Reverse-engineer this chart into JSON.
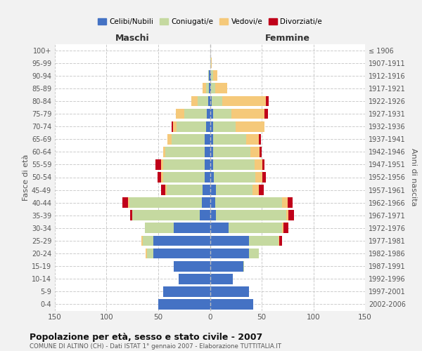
{
  "age_groups": [
    "0-4",
    "5-9",
    "10-14",
    "15-19",
    "20-24",
    "25-29",
    "30-34",
    "35-39",
    "40-44",
    "45-49",
    "50-54",
    "55-59",
    "60-64",
    "65-69",
    "70-74",
    "75-79",
    "80-84",
    "85-89",
    "90-94",
    "95-99",
    "100+"
  ],
  "birth_years": [
    "2002-2006",
    "1997-2001",
    "1992-1996",
    "1987-1991",
    "1982-1986",
    "1977-1981",
    "1972-1976",
    "1967-1971",
    "1962-1966",
    "1957-1961",
    "1952-1956",
    "1947-1951",
    "1942-1946",
    "1937-1941",
    "1932-1936",
    "1927-1931",
    "1922-1926",
    "1917-1921",
    "1912-1916",
    "1907-1911",
    "≤ 1906"
  ],
  "colors": {
    "celibe": "#4472c4",
    "coniugato": "#c5d9a0",
    "vedovo": "#f5c97a",
    "divorziato": "#c0001a"
  },
  "maschi": {
    "celibe": [
      50,
      45,
      30,
      35,
      55,
      55,
      35,
      10,
      8,
      7,
      5,
      5,
      5,
      5,
      4,
      3,
      2,
      1,
      1,
      0,
      0
    ],
    "coniugato": [
      0,
      0,
      0,
      0,
      6,
      10,
      28,
      65,
      70,
      35,
      40,
      40,
      38,
      32,
      28,
      22,
      10,
      3,
      1,
      0,
      0
    ],
    "vedovo": [
      0,
      0,
      0,
      0,
      1,
      1,
      0,
      0,
      1,
      1,
      2,
      2,
      2,
      4,
      4,
      8,
      6,
      3,
      0,
      0,
      0
    ],
    "divorziato": [
      0,
      0,
      0,
      0,
      0,
      0,
      0,
      2,
      6,
      4,
      4,
      6,
      0,
      0,
      1,
      0,
      0,
      0,
      0,
      0,
      0
    ]
  },
  "femmine": {
    "nubile": [
      42,
      38,
      22,
      32,
      38,
      38,
      18,
      6,
      5,
      6,
      4,
      3,
      3,
      3,
      3,
      3,
      2,
      1,
      1,
      0,
      0
    ],
    "coniugata": [
      0,
      0,
      0,
      1,
      9,
      28,
      52,
      68,
      65,
      35,
      40,
      40,
      36,
      32,
      22,
      18,
      10,
      4,
      2,
      1,
      0
    ],
    "vedova": [
      0,
      0,
      0,
      0,
      0,
      1,
      1,
      2,
      5,
      6,
      7,
      8,
      9,
      12,
      28,
      32,
      42,
      12,
      4,
      1,
      0
    ],
    "divorziata": [
      0,
      0,
      0,
      0,
      0,
      3,
      5,
      5,
      5,
      5,
      3,
      2,
      2,
      2,
      0,
      3,
      3,
      0,
      0,
      0,
      0
    ]
  },
  "title": "Popolazione per età, sesso e stato civile - 2007",
  "subtitle": "COMUNE DI ALTINO (CH) - Dati ISTAT 1° gennaio 2007 - Elaborazione TUTTITALIA.IT",
  "xlabel_left": "Maschi",
  "xlabel_right": "Femmine",
  "ylabel_left": "Fasce di età",
  "ylabel_right": "Anni di nascita",
  "xlim": 150,
  "legend_labels": [
    "Celibi/Nubili",
    "Coniugati/e",
    "Vedovi/e",
    "Divorziati/e"
  ],
  "background_color": "#f2f2f2",
  "plot_bg": "#ffffff"
}
